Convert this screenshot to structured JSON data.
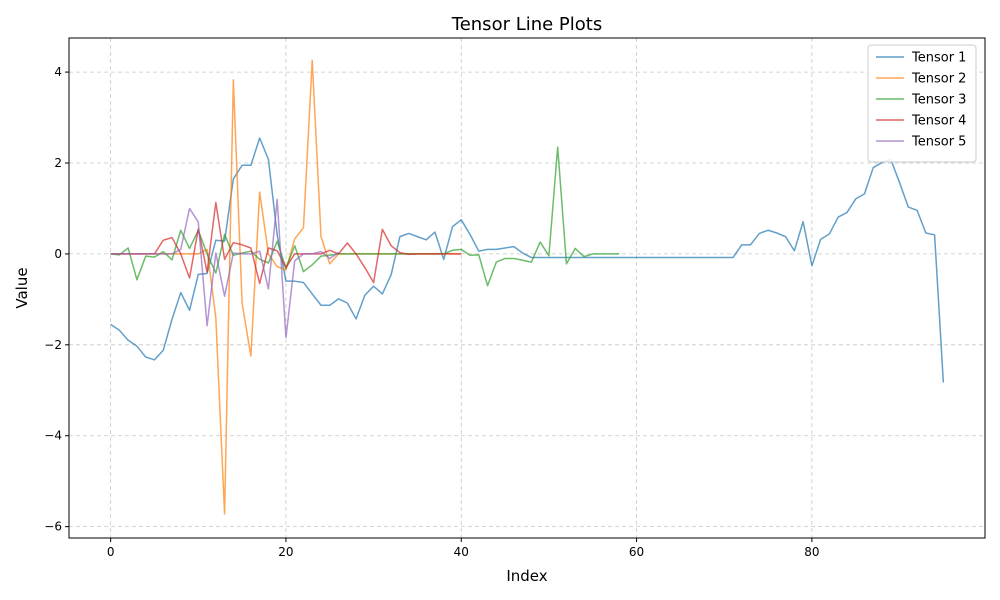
{
  "chart_data": {
    "type": "line",
    "title": "Tensor Line Plots",
    "xlabel": "Index",
    "ylabel": "Value",
    "xlim": [
      -4.75,
      99.75
    ],
    "ylim": [
      -6.25,
      4.75
    ],
    "xticks": [
      0,
      20,
      40,
      60,
      80
    ],
    "yticks": [
      -6,
      -4,
      -2,
      0,
      2,
      4
    ],
    "ytick_labels": [
      "−6",
      "−4",
      "−2",
      "0",
      "2",
      "4"
    ],
    "grid": true,
    "legend_position": "top-right",
    "series": [
      {
        "name": "Tensor 1",
        "color": "#1f77b4",
        "values": [
          -1.55,
          -1.68,
          -1.9,
          -2.03,
          -2.27,
          -2.33,
          -2.12,
          -1.44,
          -0.85,
          -1.24,
          -0.45,
          -0.43,
          0.3,
          0.28,
          1.65,
          1.95,
          1.95,
          2.55,
          2.08,
          0.42,
          -0.6,
          -0.6,
          -0.63,
          -0.88,
          -1.13,
          -1.13,
          -0.99,
          -1.08,
          -1.43,
          -0.91,
          -0.71,
          -0.88,
          -0.46,
          0.38,
          0.45,
          0.38,
          0.31,
          0.48,
          -0.12,
          0.6,
          0.75,
          0.43,
          0.06,
          0.1,
          0.1,
          0.13,
          0.16,
          0.02,
          -0.08,
          -0.08,
          -0.08,
          -0.08,
          -0.08,
          -0.08,
          -0.08,
          -0.08,
          -0.08,
          -0.08,
          -0.08,
          -0.08,
          -0.08,
          -0.08,
          -0.08,
          -0.08,
          -0.08,
          -0.08,
          -0.08,
          -0.08,
          -0.08,
          -0.08,
          -0.08,
          -0.08,
          0.2,
          0.2,
          0.45,
          0.52,
          0.46,
          0.38,
          0.07,
          0.71,
          -0.26,
          0.32,
          0.44,
          0.81,
          0.91,
          1.21,
          1.32,
          1.9,
          2.01,
          2.08,
          1.57,
          1.03,
          0.96,
          0.46,
          0.42,
          -2.83
        ]
      },
      {
        "name": "Tensor 2",
        "color": "#ff7f0e",
        "values": [
          0.0,
          0.0,
          0.0,
          0.0,
          0.0,
          0.0,
          0.0,
          0.0,
          0.0,
          0.0,
          0.0,
          0.1,
          -1.4,
          -5.72,
          3.83,
          -1.09,
          -2.25,
          1.36,
          0.0,
          -0.28,
          -0.35,
          0.33,
          0.58,
          4.26,
          0.38,
          -0.22,
          0.0,
          0.0,
          0.0,
          0.0,
          0.0,
          0.0,
          0.0,
          0.0,
          0.0,
          0.0,
          0.0,
          0.0,
          0.0,
          0.0,
          0.0
        ]
      },
      {
        "name": "Tensor 3",
        "color": "#2ca02c",
        "values": [
          0.0,
          -0.02,
          0.13,
          -0.57,
          -0.05,
          -0.07,
          0.05,
          -0.13,
          0.52,
          0.12,
          0.52,
          0.0,
          -0.42,
          0.43,
          -0.03,
          0.02,
          0.06,
          -0.12,
          -0.2,
          0.28,
          -0.32,
          0.18,
          -0.39,
          -0.24,
          -0.05,
          -0.03,
          0.0,
          0.0,
          0.0,
          0.0,
          0.0,
          0.0,
          0.0,
          0.0,
          0.0,
          0.0,
          0.0,
          0.0,
          0.0,
          0.08,
          0.1,
          -0.03,
          -0.02,
          -0.7,
          -0.18,
          -0.1,
          -0.1,
          -0.14,
          -0.18,
          0.26,
          -0.04,
          2.35,
          -0.22,
          0.12,
          -0.06,
          0.0,
          0.0,
          0.0,
          0.0
        ]
      },
      {
        "name": "Tensor 4",
        "color": "#d62728",
        "values": [
          0.0,
          0.0,
          0.0,
          0.0,
          0.0,
          0.0,
          0.3,
          0.36,
          0.0,
          -0.53,
          0.55,
          -0.4,
          1.13,
          -0.12,
          0.25,
          0.2,
          0.13,
          -0.65,
          0.13,
          0.07,
          -0.3,
          0.0,
          0.0,
          0.0,
          0.0,
          0.08,
          0.0,
          0.24,
          0.0,
          -0.3,
          -0.63,
          0.54,
          0.18,
          0.03,
          -0.01,
          0.0,
          0.0,
          0.0,
          0.0,
          0.0,
          0.0
        ]
      },
      {
        "name": "Tensor 5",
        "color": "#9467bd",
        "values": [
          0.0,
          0.0,
          0.0,
          0.0,
          0.0,
          0.0,
          0.0,
          0.0,
          0.1,
          1.0,
          0.7,
          -1.58,
          0.02,
          -0.93,
          0.02,
          0.0,
          0.0,
          0.06,
          -0.77,
          1.2,
          -1.84,
          -0.15,
          0.0,
          0.0,
          0.05,
          -0.1,
          0.03
        ]
      }
    ]
  }
}
